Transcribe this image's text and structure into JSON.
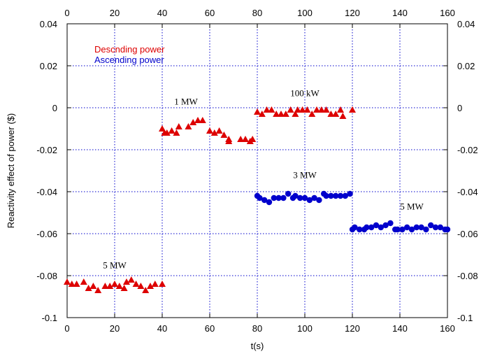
{
  "chart_data": {
    "type": "scatter",
    "xlabel": "t(s)",
    "ylabel": "Reactivity effect of power ($)",
    "xlim": [
      0,
      160
    ],
    "ylim": [
      -0.1,
      0.04
    ],
    "xticks": [
      "0",
      "20",
      "40",
      "60",
      "80",
      "100",
      "120",
      "140",
      "160"
    ],
    "yticks": [
      "-0.1",
      "-0.08",
      "-0.06",
      "-0.04",
      "-0.02",
      "0",
      "0.02",
      "0.04"
    ],
    "grid": true,
    "legend_position": "top-left",
    "series": [
      {
        "name": "Descnding power",
        "color": "#dd0000",
        "marker": "triangle",
        "points": [
          [
            0,
            -0.083
          ],
          [
            2,
            -0.084
          ],
          [
            4,
            -0.084
          ],
          [
            7,
            -0.083
          ],
          [
            9,
            -0.086
          ],
          [
            11,
            -0.085
          ],
          [
            13,
            -0.087
          ],
          [
            16,
            -0.085
          ],
          [
            18,
            -0.085
          ],
          [
            20,
            -0.084
          ],
          [
            22,
            -0.085
          ],
          [
            24,
            -0.086
          ],
          [
            25,
            -0.083
          ],
          [
            27,
            -0.082
          ],
          [
            29,
            -0.084
          ],
          [
            31,
            -0.085
          ],
          [
            33,
            -0.087
          ],
          [
            35,
            -0.085
          ],
          [
            37,
            -0.084
          ],
          [
            40,
            -0.084
          ],
          [
            40,
            -0.01
          ],
          [
            41,
            -0.012
          ],
          [
            42,
            -0.012
          ],
          [
            44,
            -0.011
          ],
          [
            46,
            -0.012
          ],
          [
            47,
            -0.009
          ],
          [
            51,
            -0.009
          ],
          [
            53,
            -0.007
          ],
          [
            55,
            -0.006
          ],
          [
            57,
            -0.006
          ],
          [
            60,
            -0.011
          ],
          [
            62,
            -0.012
          ],
          [
            64,
            -0.011
          ],
          [
            66,
            -0.013
          ],
          [
            68,
            -0.016
          ],
          [
            68,
            -0.015
          ],
          [
            73,
            -0.015
          ],
          [
            75,
            -0.015
          ],
          [
            77,
            -0.016
          ],
          [
            78,
            -0.015
          ],
          [
            80,
            -0.002
          ],
          [
            82,
            -0.003
          ],
          [
            84,
            -0.001
          ],
          [
            86,
            -0.001
          ],
          [
            88,
            -0.003
          ],
          [
            90,
            -0.003
          ],
          [
            92,
            -0.003
          ],
          [
            94,
            -0.001
          ],
          [
            96,
            -0.003
          ],
          [
            97,
            -0.001
          ],
          [
            99,
            -0.001
          ],
          [
            101,
            -0.001
          ],
          [
            103,
            -0.003
          ],
          [
            105,
            -0.001
          ],
          [
            107,
            -0.001
          ],
          [
            109,
            -0.001
          ],
          [
            111,
            -0.003
          ],
          [
            113,
            -0.003
          ],
          [
            115,
            -0.001
          ],
          [
            116,
            -0.004
          ],
          [
            120,
            -0.001
          ]
        ]
      },
      {
        "name": "Ascending power",
        "color": "#0000cc",
        "marker": "circle",
        "points": [
          [
            80,
            -0.042
          ],
          [
            81,
            -0.043
          ],
          [
            83,
            -0.044
          ],
          [
            85,
            -0.045
          ],
          [
            87,
            -0.043
          ],
          [
            89,
            -0.043
          ],
          [
            91,
            -0.043
          ],
          [
            93,
            -0.041
          ],
          [
            95,
            -0.043
          ],
          [
            96,
            -0.042
          ],
          [
            98,
            -0.043
          ],
          [
            100,
            -0.043
          ],
          [
            102,
            -0.044
          ],
          [
            104,
            -0.043
          ],
          [
            106,
            -0.044
          ],
          [
            108,
            -0.041
          ],
          [
            109,
            -0.042
          ],
          [
            111,
            -0.042
          ],
          [
            113,
            -0.042
          ],
          [
            115,
            -0.042
          ],
          [
            117,
            -0.042
          ],
          [
            119,
            -0.041
          ],
          [
            120,
            -0.058
          ],
          [
            121,
            -0.057
          ],
          [
            123,
            -0.058
          ],
          [
            125,
            -0.058
          ],
          [
            126,
            -0.057
          ],
          [
            128,
            -0.057
          ],
          [
            130,
            -0.056
          ],
          [
            132,
            -0.057
          ],
          [
            134,
            -0.056
          ],
          [
            136,
            -0.055
          ],
          [
            138,
            -0.058
          ],
          [
            139,
            -0.058
          ],
          [
            141,
            -0.058
          ],
          [
            143,
            -0.057
          ],
          [
            145,
            -0.058
          ],
          [
            147,
            -0.057
          ],
          [
            149,
            -0.057
          ],
          [
            151,
            -0.058
          ],
          [
            153,
            -0.056
          ],
          [
            155,
            -0.057
          ],
          [
            157,
            -0.057
          ],
          [
            159,
            -0.058
          ],
          [
            160,
            -0.058
          ]
        ]
      }
    ],
    "annotations": [
      {
        "text": "5 MW",
        "x": 20,
        "y": -0.0765
      },
      {
        "text": "1 MW",
        "x": 50,
        "y": 0.0015
      },
      {
        "text": "100 kW",
        "x": 100,
        "y": 0.0055
      },
      {
        "text": "3 MW",
        "x": 100,
        "y": -0.0335
      },
      {
        "text": "5 MW",
        "x": 145,
        "y": -0.0485
      }
    ]
  }
}
